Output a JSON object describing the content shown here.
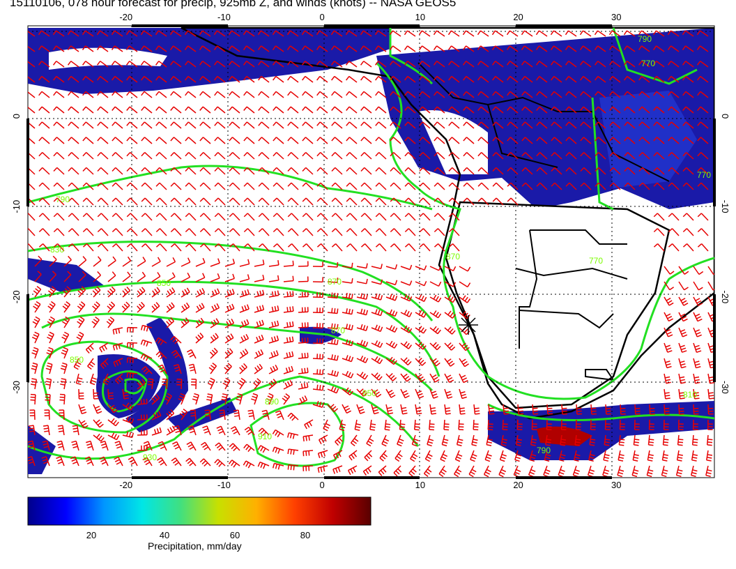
{
  "title": "15110106, 078 hour forecast for precip, 925mb Z, and winds (knots) -- NASA GEOS5",
  "map": {
    "lon_range": [
      -30,
      40
    ],
    "lat_range": [
      -40,
      10
    ],
    "lon_ticks": [
      "-20",
      "-10",
      "0",
      "10",
      "20",
      "30"
    ],
    "lat_ticks": [
      "0",
      "-10",
      "-20",
      "-30"
    ],
    "gridlines": "dotted",
    "contour_color": "#00e600",
    "barb_color": "#e60000",
    "coast_color": "#000000",
    "contour_labels": [
      "790",
      "790",
      "770",
      "770",
      "770",
      "810",
      "830",
      "850",
      "870",
      "870",
      "850",
      "890",
      "910",
      "930",
      "850",
      "870",
      "790"
    ],
    "marker": "Cape Town/Walvis Bay cross marker"
  },
  "colorbar": {
    "label": "Precipitation, mm/day",
    "ticks": [
      "20",
      "40",
      "60",
      "80"
    ],
    "colors": [
      "#00008b",
      "#0000ff",
      "#0096ff",
      "#00e6e6",
      "#40e080",
      "#c8e000",
      "#ffb000",
      "#ff4000",
      "#c00000",
      "#5a0000"
    ]
  }
}
